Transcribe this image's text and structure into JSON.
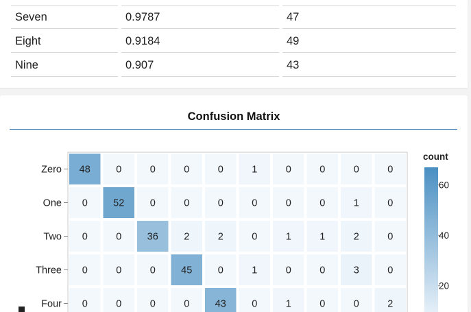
{
  "metrics_table": {
    "rows": [
      {
        "label": "Seven",
        "score": "0.9787",
        "support": "47"
      },
      {
        "label": "Eight",
        "score": "0.9184",
        "support": "49"
      },
      {
        "label": "Nine",
        "score": "0.907",
        "support": "43"
      }
    ]
  },
  "matrix_card": {
    "title": "Confusion Matrix"
  },
  "chart_data": {
    "type": "heatmap",
    "title": "Confusion Matrix",
    "y_categories": [
      "Zero",
      "One",
      "Two",
      "Three",
      "Four"
    ],
    "x_categories_count": 10,
    "values": [
      [
        48,
        0,
        0,
        0,
        0,
        1,
        0,
        0,
        0,
        0
      ],
      [
        0,
        52,
        0,
        0,
        0,
        0,
        0,
        0,
        1,
        0
      ],
      [
        0,
        0,
        36,
        2,
        2,
        0,
        1,
        1,
        2,
        0
      ],
      [
        0,
        0,
        0,
        45,
        0,
        1,
        0,
        0,
        3,
        0
      ],
      [
        0,
        0,
        0,
        0,
        43,
        0,
        1,
        0,
        0,
        2
      ]
    ],
    "legend": {
      "title": "count",
      "ticks": [
        60,
        40,
        20
      ],
      "domain": [
        0,
        67
      ],
      "placement": "right"
    },
    "color_low": "#f3f8fd",
    "color_high": "#4a8fc2"
  }
}
